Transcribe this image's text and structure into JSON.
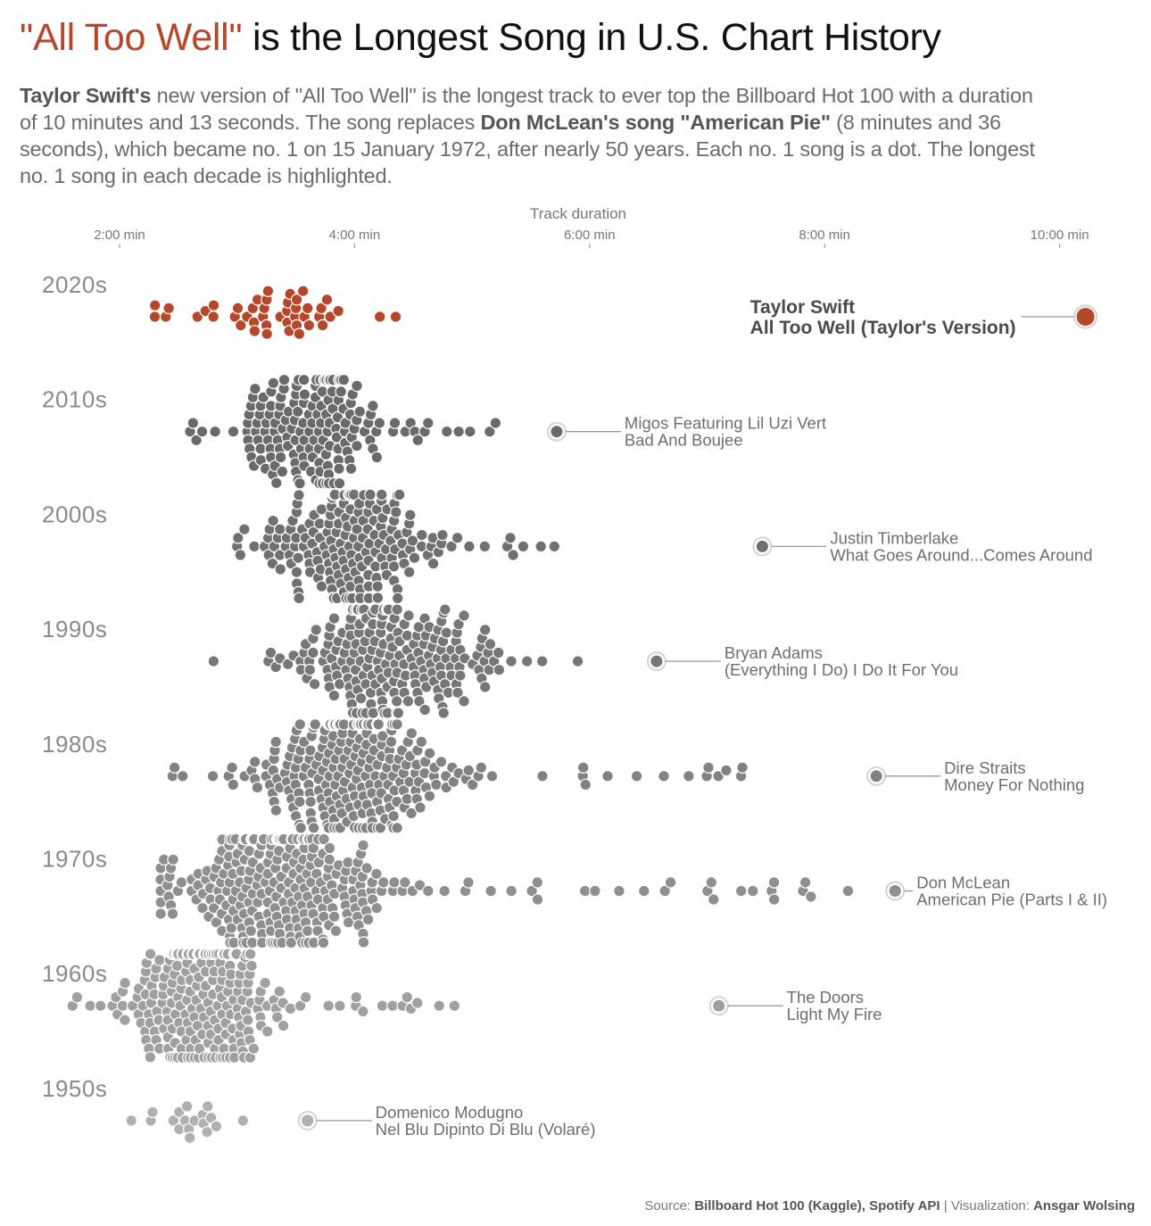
{
  "header": {
    "title_accent": "\"All Too Well\"",
    "title_rest": " is the Longest Song in U.S. Chart History",
    "subtitle": {
      "p1_bold": "Taylor Swift's",
      "p2": " new version of \"All Too Well\" is the longest track to ever top the Billboard Hot 100 with a duration of 10 minutes and 13 seconds. The song replaces ",
      "p3_bold": "Don McLean's song \"American Pie\"",
      "p4": " (8 minutes and 36 seconds), which became no. 1 on 15 January 1972, after nearly 50 years. Each no. 1 song is a dot. The longest no. 1 song in each decade is highlighted."
    }
  },
  "footer": {
    "source_label": "Source: ",
    "source_value": "Billboard Hot 100 (Kaggle), Spotify API",
    "separator": " | ",
    "viz_label": "Visualization: ",
    "viz_value": "Ansgar Wolsing"
  },
  "chart_data": {
    "type": "scatter",
    "subtype": "beeswarm",
    "title": "\"All Too Well\" is the Longest Song in U.S. Chart History",
    "xlabel": "Track duration",
    "x_unit": "minutes",
    "xlim": [
      1.35,
      10.6
    ],
    "xticks": [
      2,
      4,
      6,
      8,
      10
    ],
    "xtick_labels": [
      "2:00 min",
      "4:00 min",
      "6:00 min",
      "8:00 min",
      "10:00 min"
    ],
    "axis_position": "top",
    "grid": false,
    "colors": {
      "accent": "#b5472a",
      "2020s": "#b5472a",
      "2010s": "#6a6a6a",
      "2000s": "#707070",
      "1990s": "#777777",
      "1980s": "#828282",
      "1970s": "#8f8f8f",
      "1960s": "#a0a0a0",
      "1950s": "#b0b0b0",
      "halo": "#d6d6d6",
      "connector": "#9a9a9a"
    },
    "decades": [
      {
        "label": "2020s",
        "count": 45,
        "min": 2.3,
        "max": 4.35,
        "peak": 3.2,
        "spread": 0.55,
        "longest": {
          "artist": "Taylor Swift",
          "song": "All Too Well (Taylor's Version)",
          "duration_min": 10.22,
          "label_side": "left",
          "emphasis": true
        }
      },
      {
        "label": "2010s",
        "count": 170,
        "min": 2.6,
        "max": 5.2,
        "peak": 3.65,
        "spread": 0.5,
        "longest": {
          "artist": "Migos Featuring Lil Uzi Vert",
          "song": "Bad And Boujee",
          "duration_min": 5.72,
          "label_side": "right",
          "emphasis": false
        }
      },
      {
        "label": "2000s",
        "count": 190,
        "min": 3.0,
        "max": 5.7,
        "peak": 3.9,
        "spread": 0.5,
        "longest": {
          "artist": "Justin Timberlake",
          "song": "What Goes Around...Comes Around",
          "duration_min": 7.47,
          "label_side": "right",
          "emphasis": false
        }
      },
      {
        "label": "1990s",
        "count": 210,
        "min": 2.8,
        "max": 5.9,
        "peak": 4.3,
        "spread": 0.6,
        "longest": {
          "artist": "Bryan Adams",
          "song": "(Everything I Do) I Do It For You",
          "duration_min": 6.57,
          "label_side": "right",
          "emphasis": false
        }
      },
      {
        "label": "1980s",
        "count": 260,
        "min": 2.45,
        "max": 7.3,
        "peak": 4.0,
        "spread": 0.6,
        "longest": {
          "artist": "Dire Straits",
          "song": "Money For Nothing",
          "duration_min": 8.44,
          "label_side": "right",
          "emphasis": false
        }
      },
      {
        "label": "1970s",
        "count": 300,
        "min": 2.35,
        "max": 8.2,
        "peak": 3.4,
        "spread": 0.65,
        "longest": {
          "artist": "Don McLean",
          "song": "American Pie (Parts I & II)",
          "duration_min": 8.6,
          "label_side": "right",
          "emphasis": false
        }
      },
      {
        "label": "1960s",
        "count": 250,
        "min": 1.6,
        "max": 4.85,
        "peak": 2.7,
        "spread": 0.45,
        "longest": {
          "artist": "The Doors",
          "song": "Light My Fire",
          "duration_min": 7.1,
          "label_side": "right",
          "emphasis": false
        }
      },
      {
        "label": "1950s",
        "count": 18,
        "min": 2.1,
        "max": 3.05,
        "peak": 2.6,
        "spread": 0.2,
        "longest": {
          "artist": "Domenico Modugno",
          "song": "Nel Blu Dipinto Di Blu (Volaré)",
          "duration_min": 3.6,
          "label_side": "right",
          "emphasis": false
        }
      }
    ]
  }
}
